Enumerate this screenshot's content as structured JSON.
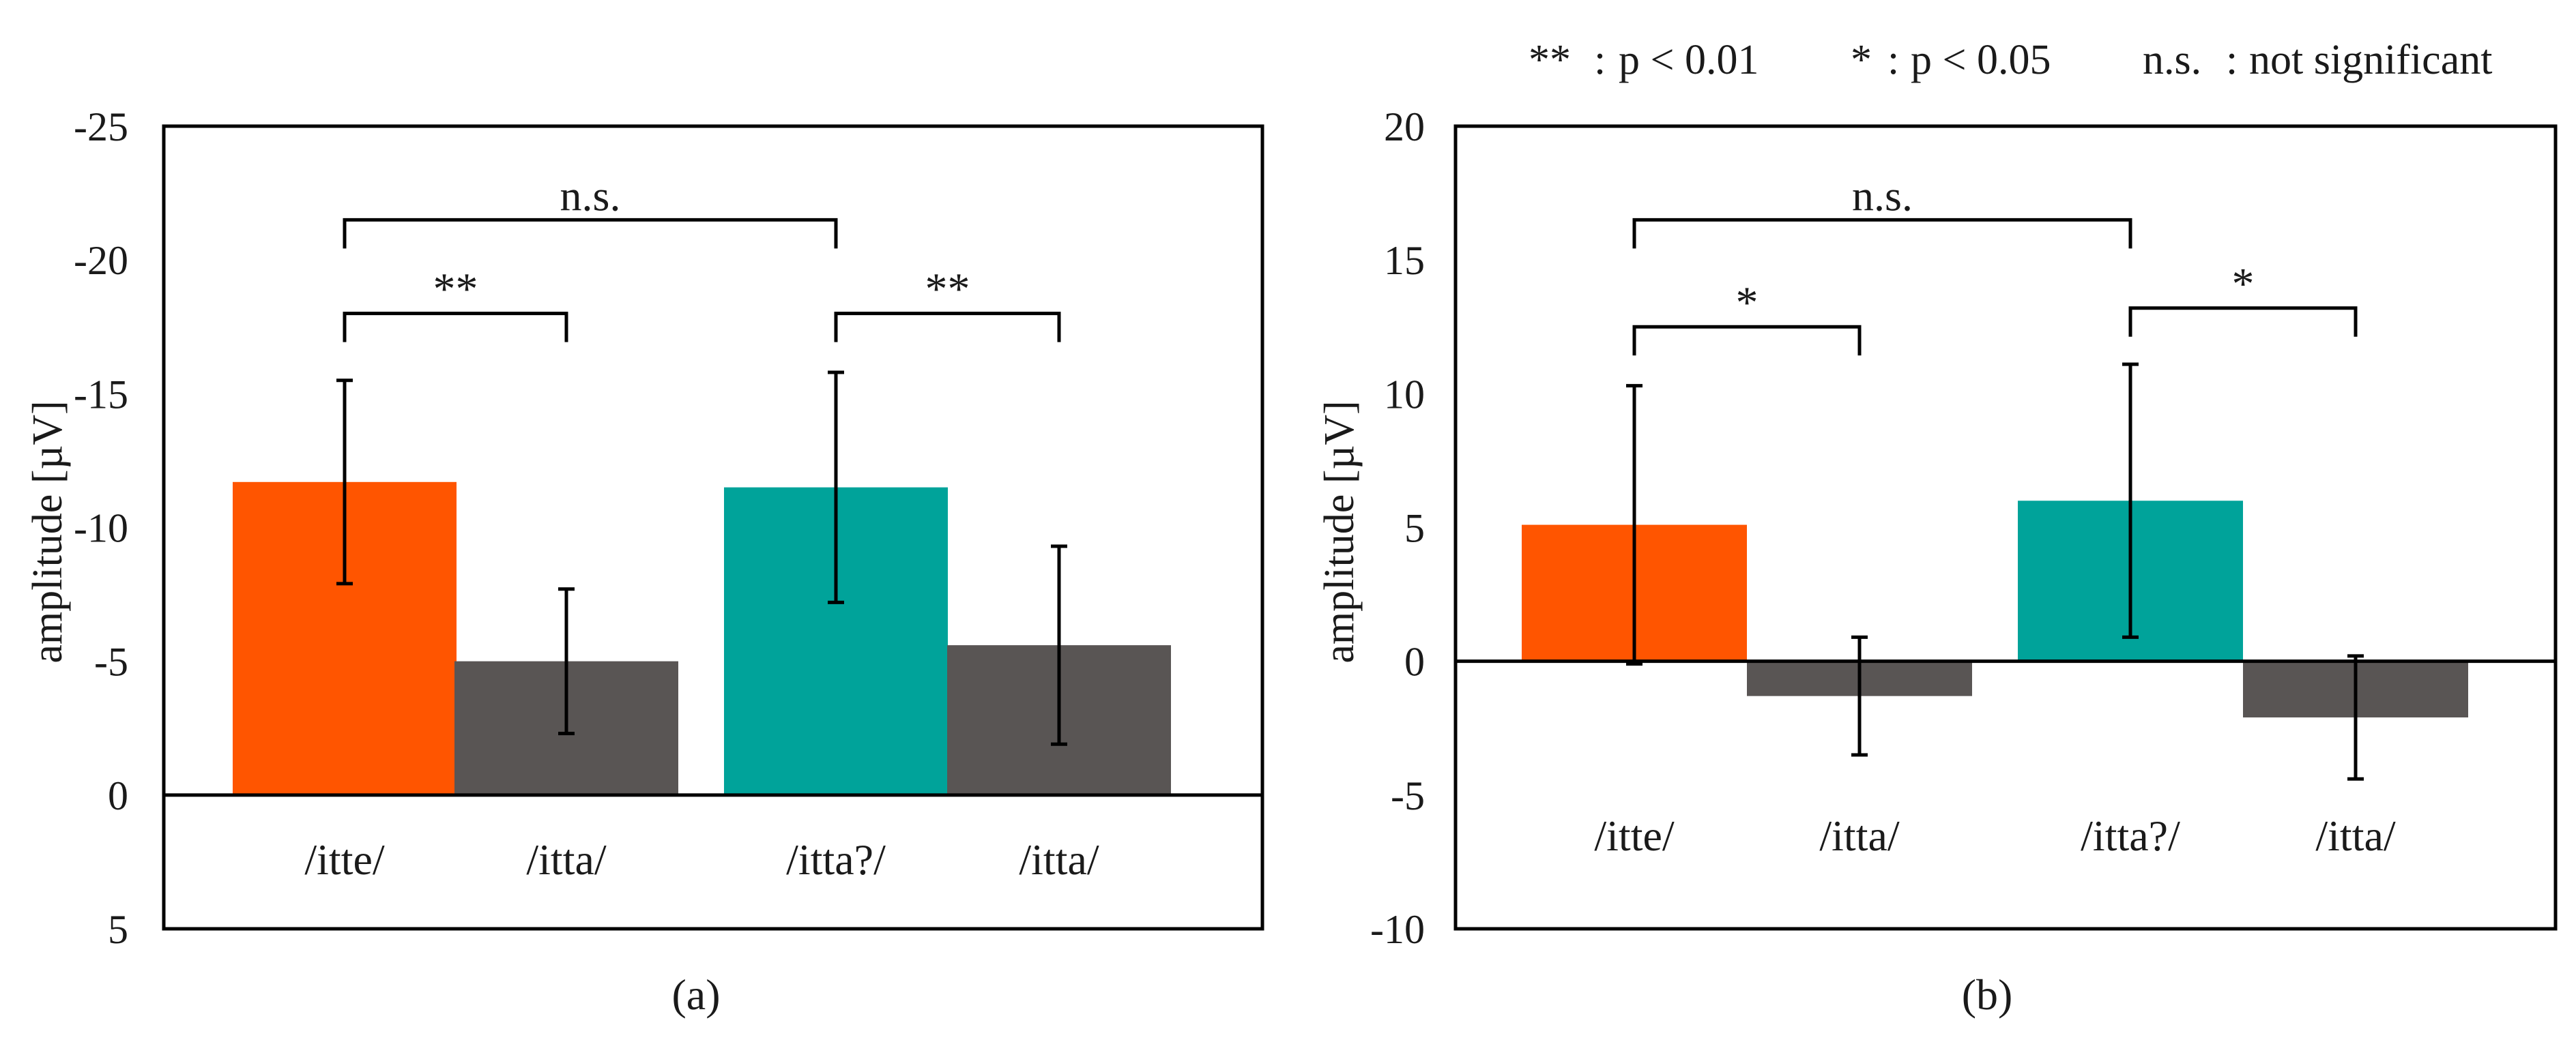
{
  "legend": {
    "items": [
      {
        "sym": "**",
        "desc": "p < 0.01"
      },
      {
        "sym": "*",
        "desc": "p < 0.05"
      },
      {
        "sym": "n.s.",
        "desc": "not significant"
      }
    ]
  },
  "colors": {
    "orange": "#FF5500",
    "teal": "#00A39A",
    "gray": "#595554",
    "axis": "#000000"
  },
  "chart_data": [
    {
      "type": "bar",
      "panel_label": "(a)",
      "ylabel": "amplitude [µV]",
      "inverted_y": true,
      "ylim": [
        5,
        -25
      ],
      "yticks": [
        -25,
        -20,
        -15,
        -10,
        -5,
        0,
        5
      ],
      "ytick_labels": [
        "-25",
        "-20",
        "-15",
        "-10",
        "-5",
        "0",
        "5"
      ],
      "categories": [
        "/itte/",
        "/itta/",
        "/itta?/",
        "/itta/"
      ],
      "values": [
        -11.7,
        -5.0,
        -11.5,
        -5.6
      ],
      "errors": [
        3.8,
        2.7,
        4.3,
        3.7
      ],
      "bar_colors": [
        "orange",
        "gray",
        "teal",
        "gray"
      ],
      "significance": [
        {
          "from": 0,
          "to": 1,
          "label": "**",
          "level": -18
        },
        {
          "from": 2,
          "to": 3,
          "label": "**",
          "level": -18
        },
        {
          "from": 0,
          "to": 2,
          "label": "n.s.",
          "level": -21.5
        }
      ]
    },
    {
      "type": "bar",
      "panel_label": "(b)",
      "ylabel": "amplitude [µV]",
      "inverted_y": false,
      "ylim": [
        -10,
        20
      ],
      "yticks": [
        20,
        15,
        10,
        5,
        0,
        -5,
        -10
      ],
      "ytick_labels": [
        "20",
        "15",
        "10",
        "5",
        "0",
        "-5",
        "-10"
      ],
      "categories": [
        "/itte/",
        "/itta/",
        "/itta?/",
        "/itta/"
      ],
      "values": [
        5.1,
        -1.3,
        6.0,
        -2.1
      ],
      "errors": [
        5.2,
        2.2,
        5.1,
        2.3
      ],
      "bar_colors": [
        "orange",
        "gray",
        "teal",
        "gray"
      ],
      "significance": [
        {
          "from": 0,
          "to": 1,
          "label": "*",
          "level": 12.5
        },
        {
          "from": 2,
          "to": 3,
          "label": "*",
          "level": 13.2
        },
        {
          "from": 0,
          "to": 2,
          "label": "n.s.",
          "level": 16.5
        }
      ]
    }
  ]
}
